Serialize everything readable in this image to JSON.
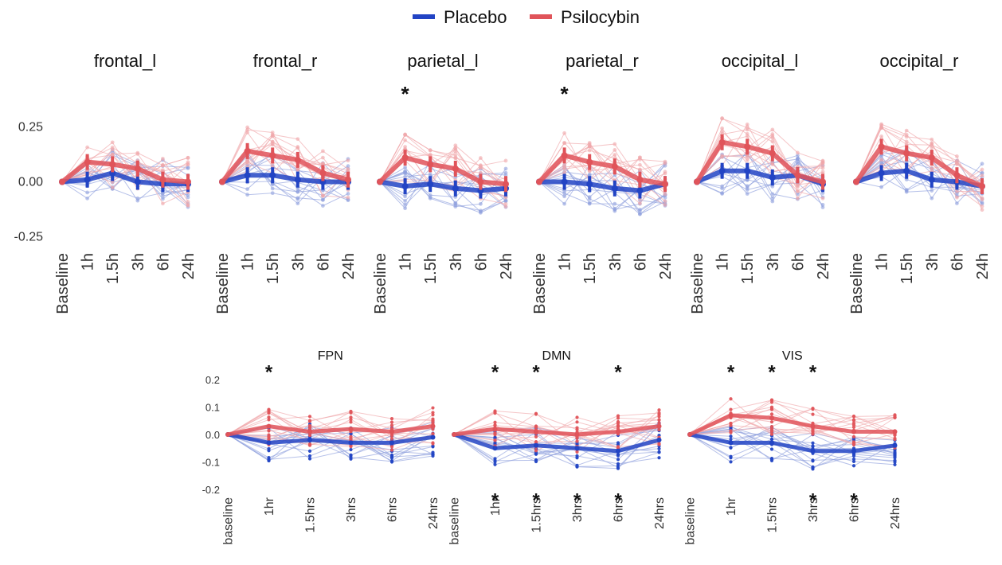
{
  "legend": {
    "placebo_label": "Placebo",
    "psilocybin_label": "Psilocybin"
  },
  "colors": {
    "placebo": "#2244c4",
    "psilocybin": "#e0545a",
    "placebo_faint": "#8fa0dd",
    "psilocybin_faint": "#f0a7aa"
  },
  "star_glyph": "*",
  "chart_data": [
    {
      "type": "line",
      "title": "frontal_l",
      "categories": [
        "Baseline",
        "1h",
        "1.5h",
        "3h",
        "6h",
        "24h"
      ],
      "yticks": [
        "0.25",
        "0.00",
        "-0.25"
      ],
      "ylim": [
        -0.27,
        0.45
      ],
      "series": [
        {
          "name": "Placebo",
          "values": [
            0.0,
            0.01,
            0.04,
            0.0,
            -0.01,
            -0.01
          ]
        },
        {
          "name": "Psilocybin",
          "values": [
            0.0,
            0.09,
            0.08,
            0.06,
            0.01,
            0.0
          ]
        }
      ],
      "stars": []
    },
    {
      "type": "line",
      "title": "frontal_r",
      "categories": [
        "Baseline",
        "1h",
        "1.5h",
        "3h",
        "6h",
        "24h"
      ],
      "ylim": [
        -0.27,
        0.45
      ],
      "series": [
        {
          "name": "Placebo",
          "values": [
            0.0,
            0.03,
            0.03,
            0.01,
            0.0,
            0.0
          ]
        },
        {
          "name": "Psilocybin",
          "values": [
            0.0,
            0.14,
            0.12,
            0.1,
            0.04,
            0.01
          ]
        }
      ],
      "stars": []
    },
    {
      "type": "line",
      "title": "parietal_l",
      "categories": [
        "Baseline",
        "1h",
        "1.5h",
        "3h",
        "6h",
        "24h"
      ],
      "ylim": [
        -0.27,
        0.45
      ],
      "series": [
        {
          "name": "Placebo",
          "values": [
            0.0,
            -0.02,
            -0.01,
            -0.03,
            -0.04,
            -0.03
          ]
        },
        {
          "name": "Psilocybin",
          "values": [
            0.0,
            0.11,
            0.08,
            0.06,
            0.0,
            -0.01
          ]
        }
      ],
      "stars": [
        {
          "index": 1,
          "group": "Psilocybin"
        }
      ]
    },
    {
      "type": "line",
      "title": "parietal_r",
      "categories": [
        "Baseline",
        "1h",
        "1.5h",
        "3h",
        "6h",
        "24h"
      ],
      "ylim": [
        -0.27,
        0.45
      ],
      "series": [
        {
          "name": "Placebo",
          "values": [
            0.0,
            0.0,
            -0.01,
            -0.03,
            -0.04,
            -0.01
          ]
        },
        {
          "name": "Psilocybin",
          "values": [
            0.0,
            0.12,
            0.09,
            0.07,
            0.01,
            -0.01
          ]
        }
      ],
      "stars": [
        {
          "index": 1,
          "group": "Psilocybin"
        }
      ]
    },
    {
      "type": "line",
      "title": "occipital_l",
      "categories": [
        "Baseline",
        "1h",
        "1.5h",
        "3h",
        "6h",
        "24h"
      ],
      "ylim": [
        -0.27,
        0.45
      ],
      "series": [
        {
          "name": "Placebo",
          "values": [
            0.0,
            0.05,
            0.05,
            0.02,
            0.03,
            -0.01
          ]
        },
        {
          "name": "Psilocybin",
          "values": [
            0.0,
            0.18,
            0.16,
            0.13,
            0.03,
            0.0
          ]
        }
      ],
      "stars": []
    },
    {
      "type": "line",
      "title": "occipital_r",
      "categories": [
        "Baseline",
        "1h",
        "1.5h",
        "3h",
        "6h",
        "24h"
      ],
      "ylim": [
        -0.27,
        0.45
      ],
      "series": [
        {
          "name": "Placebo",
          "values": [
            0.0,
            0.04,
            0.05,
            0.01,
            0.0,
            -0.02
          ]
        },
        {
          "name": "Psilocybin",
          "values": [
            0.0,
            0.16,
            0.13,
            0.11,
            0.03,
            -0.02
          ]
        }
      ],
      "stars": []
    },
    {
      "type": "line",
      "title": "FPN",
      "categories": [
        "baseline",
        "1hr",
        "1.5hrs",
        "3hrs",
        "6hrs",
        "24hrs"
      ],
      "yticks": [
        "0.2",
        "0.1",
        "0.0",
        "-0.1",
        "-0.2"
      ],
      "ylim": [
        -0.22,
        0.2
      ],
      "series": [
        {
          "name": "Placebo",
          "values": [
            0.0,
            -0.03,
            -0.02,
            -0.03,
            -0.03,
            -0.01
          ]
        },
        {
          "name": "Psilocybin",
          "values": [
            0.0,
            0.03,
            0.01,
            0.02,
            0.01,
            0.03
          ]
        }
      ],
      "stars": [
        {
          "index": 1,
          "group": "Psilocybin"
        }
      ]
    },
    {
      "type": "line",
      "title": "DMN",
      "categories": [
        "baseline",
        "1hr",
        "1.5hrs",
        "3hrs",
        "6hrs",
        "24hrs"
      ],
      "ylim": [
        -0.22,
        0.2
      ],
      "series": [
        {
          "name": "Placebo",
          "values": [
            0.0,
            -0.05,
            -0.04,
            -0.05,
            -0.06,
            -0.02
          ]
        },
        {
          "name": "Psilocybin",
          "values": [
            0.0,
            0.02,
            0.01,
            0.0,
            0.01,
            0.03
          ]
        }
      ],
      "stars": [
        {
          "index": 1,
          "group": "Psilocybin"
        },
        {
          "index": 2,
          "group": "Psilocybin"
        },
        {
          "index": 4,
          "group": "Psilocybin"
        },
        {
          "index": 1,
          "group": "Placebo"
        },
        {
          "index": 2,
          "group": "Placebo"
        },
        {
          "index": 3,
          "group": "Placebo"
        },
        {
          "index": 4,
          "group": "Placebo"
        }
      ]
    },
    {
      "type": "line",
      "title": "VIS",
      "categories": [
        "baseline",
        "1hr",
        "1.5hrs",
        "3hrs",
        "6hrs",
        "24hrs"
      ],
      "ylim": [
        -0.22,
        0.2
      ],
      "series": [
        {
          "name": "Placebo",
          "values": [
            0.0,
            -0.03,
            -0.03,
            -0.06,
            -0.06,
            -0.04
          ]
        },
        {
          "name": "Psilocybin",
          "values": [
            0.0,
            0.07,
            0.06,
            0.03,
            0.01,
            0.01
          ]
        }
      ],
      "stars": [
        {
          "index": 1,
          "group": "Psilocybin"
        },
        {
          "index": 2,
          "group": "Psilocybin"
        },
        {
          "index": 3,
          "group": "Psilocybin"
        },
        {
          "index": 3,
          "group": "Placebo"
        },
        {
          "index": 4,
          "group": "Placebo"
        }
      ]
    }
  ]
}
